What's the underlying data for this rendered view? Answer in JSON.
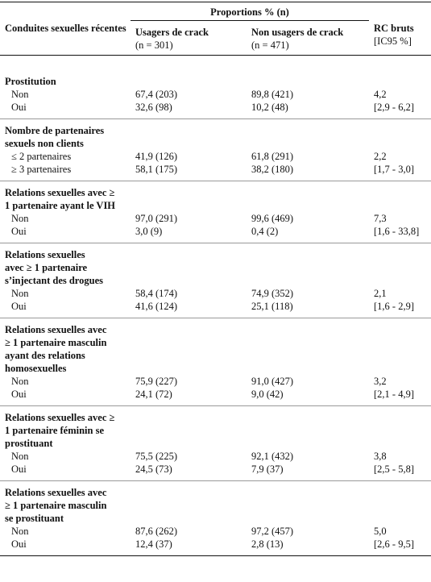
{
  "header": {
    "col1": "Conduites sexuelles récentes",
    "proportions": "Proportions % (n)",
    "col2_title": "Usagers de crack",
    "col2_n": "(n = 301)",
    "col3_title": "Non usagers de crack",
    "col3_n": "(n = 471)",
    "col4_title": "RC bruts",
    "col4_sub": "[IC95 %]"
  },
  "sections": [
    {
      "title": "Prostitution",
      "title_mark": "*",
      "rows": [
        {
          "label": "Non",
          "users": "67,4 (203)",
          "nonusers": "89,8 (421)",
          "rc": "4,2"
        },
        {
          "label": "Oui",
          "users": "32,6 (98)",
          "nonusers": "10,2 (48)",
          "rc": "[2,9 - 6,2]"
        }
      ]
    },
    {
      "title": "Nombre de partenaires sexuels non clients",
      "title_mark": "",
      "rows": [
        {
          "label": "≤ 2 partenaires",
          "users": "41,9 (126)",
          "nonusers": "61,8 (291)",
          "rc": "2,2"
        },
        {
          "label": "≥ 3 partenaires",
          "users": "58,1 (175)",
          "nonusers": "38,2 (180)",
          "rc": "[1,7 - 3,0]"
        }
      ]
    },
    {
      "title": "Relations sexuelles avec ≥ 1 partenaire ayant le VIH",
      "title_mark": "§",
      "rows": [
        {
          "label": "Non",
          "users": "97,0 (291)",
          "nonusers": "99,6 (469)",
          "rc": "7,3"
        },
        {
          "label": "Oui",
          "users": "3,0 (9)",
          "nonusers": "0,4 (2)",
          "rc": "[1,6 - 33,8]"
        }
      ]
    },
    {
      "title": "Relations sexuelles avec ≥ 1 partenaire s’injectant des drogues",
      "title_mark": "§",
      "rows": [
        {
          "label": "Non",
          "users": "58,4 (174)",
          "nonusers": "74,9 (352)",
          "rc": "2,1"
        },
        {
          "label": "Oui",
          "users": "41,6 (124)",
          "nonusers": "25,1 (118)",
          "rc": "[1,6 - 2,9]"
        }
      ]
    },
    {
      "title": "Relations sexuelles avec ≥ 1 partenaire masculin ayant des relations homosexuelles",
      "title_mark": "§",
      "rows": [
        {
          "label": "Non",
          "users": "75,9 (227)",
          "nonusers": "91,0 (427)",
          "rc": "3,2"
        },
        {
          "label": "Oui",
          "users": "24,1 (72)",
          "nonusers": "9,0 (42)",
          "rc": "[2,1 - 4,9]"
        }
      ]
    },
    {
      "title": "Relations sexuelles avec ≥ 1 partenaire féminin se prostituant",
      "title_mark": "†",
      "rows": [
        {
          "label": "Non",
          "users": "75,5 (225)",
          "nonusers": "92,1 (432)",
          "rc": "3,8"
        },
        {
          "label": "Oui",
          "users": "24,5 (73)",
          "nonusers": "7,9 (37)",
          "rc": "[2,5 - 5,8]"
        }
      ]
    },
    {
      "title": "Relations sexuelles avec ≥ 1 partenaire masculin se prostituant",
      "title_mark": "**",
      "rows": [
        {
          "label": "Non",
          "users": "87,6 (262)",
          "nonusers": "97,2 (457)",
          "rc": "5,0"
        },
        {
          "label": "Oui",
          "users": "12,4 (37)",
          "nonusers": "2,8 (13)",
          "rc": "[2,6 - 9,5]"
        }
      ]
    }
  ]
}
